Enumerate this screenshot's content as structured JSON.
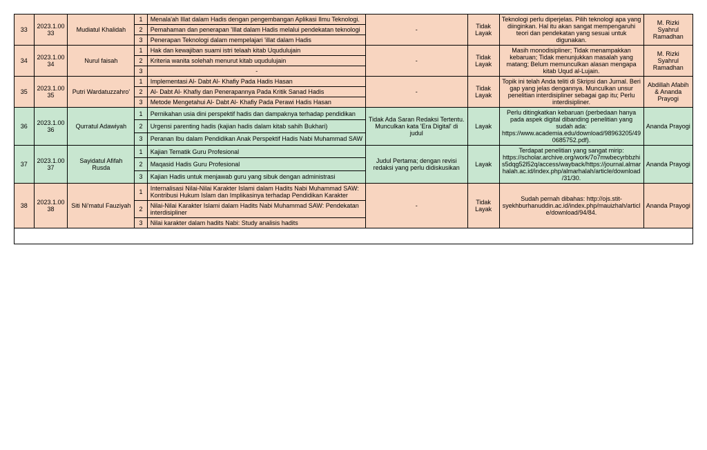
{
  "rows": [
    {
      "no": "33",
      "id": "2023.1.0033",
      "name": "Mudiatul Khalidah",
      "status": "Tidak Layak",
      "note1": "-",
      "note2": "Teknologi perlu diperjelas. Pilih teknologi apa yang diinginkan. Hal itu akan sangat mempengaruhi teori dan pendekatan yang sesuai untuk digunakan.",
      "reviewer": "M. Rizki Syahrul Ramadhan",
      "color": "peach",
      "titles": [
        "Menala'ah Illat dalam Hadis dengan pengembangan Aplikasi Ilmu Teknologi.",
        "Pemahaman dan penerapan  'Illat dalam Hadis melalui pendekatan teknologi",
        "Penerapan Teknologi dalam mempelajari 'illat dalam Hadis"
      ]
    },
    {
      "no": "34",
      "id": "2023.1.0034",
      "name": "Nurul faisah",
      "status": "Tidak Layak",
      "note1": "-",
      "note2": "Masih monodisipliner; Tidak menampakkan kebaruan; Tidak menunjukkan masalah yang matang; Belum memunculkan alasan mengapa kitab Uqud al-Lujain.",
      "reviewer": "M. Rizki Syahrul Ramadhan",
      "color": "peach",
      "titles": [
        "Hak dan kewajiban suami istri telaah kitab Uqudulujain",
        "Kriteria wanita solehah menurut kitab uqudulujain",
        "-"
      ]
    },
    {
      "no": "35",
      "id": "2023.1.0035",
      "name": "Putri Wardatuzzahro'",
      "status": "Tidak Layak",
      "note1": "-",
      "note2": "Topik ini telah Anda teliti di Skripsi dan Jurnal. Beri gap yang jelas dengannya. Munculkan unsur penelitian interdisipliner sebagai gap itu; Perlu interdisipliner.",
      "reviewer": "Abdillah Afabih & Ananda Prayogi",
      "color": "peach",
      "titles": [
        "Implementasi Al- Dabt Al- Khafiy Pada Hadis Hasan",
        "Al- Dabt Al- Khafiy dan Penerapannya Pada Kritik Sanad Hadis",
        "Metode Mengetahui Al- Dabt Al- Khafiy Pada Perawi Hadis Hasan"
      ]
    },
    {
      "no": "36",
      "id": "2023.1.0036",
      "name": "Qurratul Adawiyah",
      "status": "Layak",
      "note1": "Tidak Ada Saran Redaksi Tertentu. Munculkan kata 'Era Digital' di judul",
      "note2": "Perlu ditingkatkan kebaruan (perbedaan hanya pada aspek digital dibanding penelitian yang sudah ada: https://www.academia.edu/download/98963205/490685752.pdf).",
      "reviewer": "Ananda Prayogi",
      "color": "green",
      "titles": [
        "Pernikahan usia dini perspektif hadis dan dampaknya terhadap pendidikan",
        "Urgensi parenting hadis (kajian hadis dalam kitab sahih Bukhari)",
        "Peranan Ibu dalam Pendidikan Anak Perspektif Hadis Nabi Muhammad SAW"
      ]
    },
    {
      "no": "37",
      "id": "2023.1.0037",
      "name": "Sayidatul Afifah Rusda",
      "status": "Layak",
      "note1": "Judul Pertama; dengan revisi redaksi yang perlu didiskusikan",
      "note2": "Terdapat penelitian yang sangat mirip: https://scholar.archive.org/work/7o7mwbecyrbbzhis5dqg52l52q/access/wayback/https://journal.almarhalah.ac.id/index.php/almarhalah/article/download/31/30.",
      "reviewer": "Ananda Prayogi",
      "color": "green",
      "titles": [
        "Kajian Tematik Guru Profesional",
        "Maqasid Hadis Guru Profesional",
        "Kajian Hadis untuk menjawab guru yang sibuk dengan administrasi"
      ]
    },
    {
      "no": "38",
      "id": "2023.1.0038",
      "name": "Siti Ni'matul Fauziyah",
      "status": "Tidak Layak",
      "note1": "-",
      "note2": "Sudah pernah dibahas: http://ojs.stit-syekhburhanuddin.ac.id/index.php/mauizhah/article/download/94/84.",
      "reviewer": "Ananda Prayogi",
      "color": "peach",
      "titles": [
        "Internalisasi Nilai-Nilai Karakter Islami dalam Hadits Nabi Muhammad SAW: Kontribusi Hukum Islam dan Implikasinya terhadap Pendidikan Karakter",
        " Nilai-Nilai Karakter Islami dalam Hadits Nabi Muhammad SAW: Pendekatan interdisipliner",
        "Nilai karakter dalam hadits Nabi: Study analisis hadits"
      ]
    }
  ]
}
